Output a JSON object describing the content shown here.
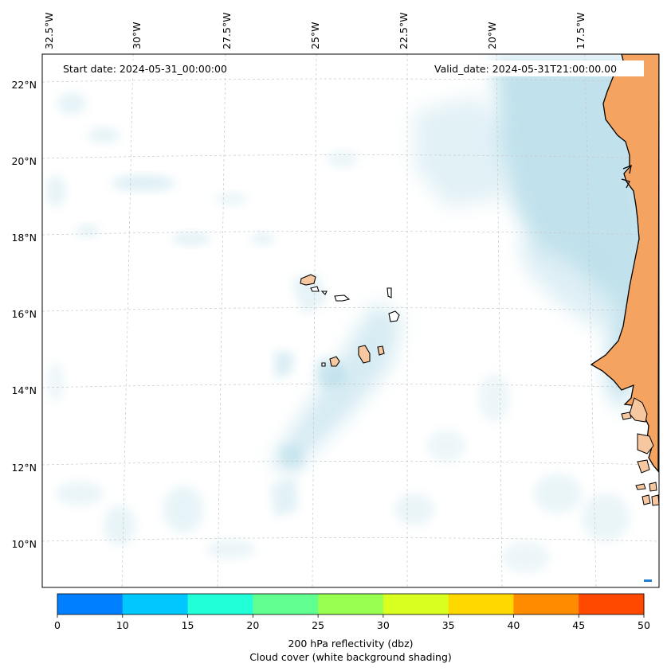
{
  "map": {
    "start_date": "Start date: 2024-05-31_00:00:00",
    "valid_date": "Valid_date: 2024-05-31T21:00:00.00",
    "lon_labels": [
      "32.5°W",
      "30°W",
      "27.5°W",
      "25°W",
      "22.5°W",
      "20°W",
      "17.5°W"
    ],
    "lat_labels": [
      "22°N",
      "20°N",
      "18°N",
      "16°N",
      "14°N",
      "12°N",
      "10°N"
    ],
    "land_color": "#f4a460",
    "cloud_color": "#add8e6"
  },
  "colorbar": {
    "ticks": [
      "0",
      "10",
      "15",
      "20",
      "25",
      "30",
      "35",
      "40",
      "45",
      "50"
    ],
    "colors": [
      "#0080ff",
      "#00c8ff",
      "#20ffd8",
      "#60ff90",
      "#98ff50",
      "#d8ff20",
      "#ffd800",
      "#ff8c00",
      "#ff4800"
    ],
    "label": "200 hPa reflectivity (dbz)",
    "sublabel": "Cloud cover (white background shading)"
  }
}
